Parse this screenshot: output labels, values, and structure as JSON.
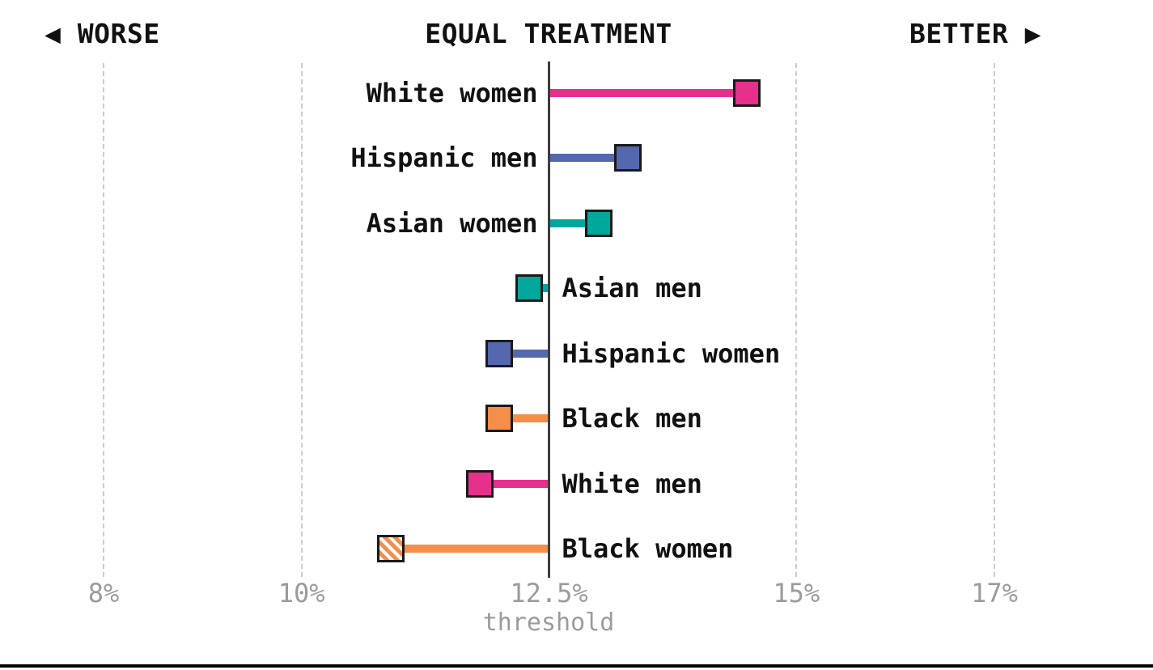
{
  "header": {
    "worse_label": "◀ WORSE",
    "center_label": "EQUAL TREATMENT",
    "better_label": "BETTER ▶"
  },
  "axis": {
    "tick_labels": [
      "8%",
      "10%",
      "12.5%",
      "15%",
      "17%"
    ],
    "tick_values": [
      8,
      10,
      12.5,
      15,
      17
    ],
    "threshold_value": 12.5,
    "threshold_label": "12.5%",
    "threshold_sublabel": "threshold"
  },
  "chart_data": {
    "type": "bar",
    "subtype": "lollipop-diverging",
    "orientation": "horizontal",
    "title": "",
    "xlabel": "threshold",
    "ylabel": "",
    "baseline": 12.5,
    "xlim": [
      7,
      18.6
    ],
    "grid": "vertical-dashed",
    "legend_position": "none",
    "categories": [
      "White women",
      "Hispanic men",
      "Asian women",
      "Asian men",
      "Hispanic women",
      "Black men",
      "White men",
      "Black women"
    ],
    "values": [
      14.5,
      13.3,
      13.0,
      12.3,
      12.0,
      12.0,
      11.8,
      10.9
    ],
    "annotations": [
      "WORSE (left)",
      "EQUAL TREATMENT (center)",
      "BETTER (right)"
    ],
    "rows": [
      {
        "category": "White women",
        "value": 14.5,
        "color": "#e6308c",
        "hatched": false,
        "label_side": "left"
      },
      {
        "category": "Hispanic men",
        "value": 13.3,
        "color": "#5567ae",
        "hatched": false,
        "label_side": "left"
      },
      {
        "category": "Asian women",
        "value": 13.0,
        "color": "#00a79b",
        "hatched": false,
        "label_side": "left"
      },
      {
        "category": "Asian men",
        "value": 12.3,
        "color": "#00a79b",
        "hatched": false,
        "label_side": "right"
      },
      {
        "category": "Hispanic women",
        "value": 12.0,
        "color": "#5567ae",
        "hatched": false,
        "label_side": "right"
      },
      {
        "category": "Black men",
        "value": 12.0,
        "color": "#f58e48",
        "hatched": false,
        "label_side": "right"
      },
      {
        "category": "White men",
        "value": 11.8,
        "color": "#e6308c",
        "hatched": false,
        "label_side": "right"
      },
      {
        "category": "Black women",
        "value": 10.9,
        "color": "#f58e48",
        "hatched": true,
        "label_side": "right"
      }
    ]
  },
  "colors": {
    "pink": "#e6308c",
    "blue": "#5567ae",
    "teal": "#00a79b",
    "orange": "#f58e48",
    "threshold_line": "#3c3c3c",
    "gridline": "#cccccc",
    "axis_text": "#9b9b9b",
    "label_text": "#111111",
    "bottom_rule": "#000000"
  }
}
